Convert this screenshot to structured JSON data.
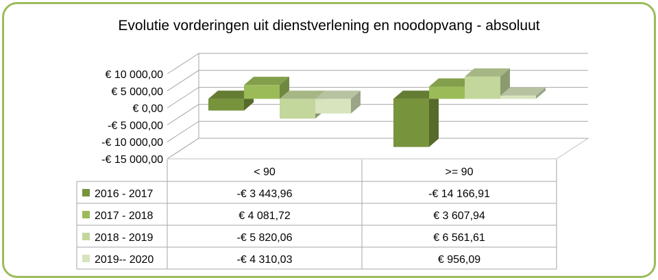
{
  "chart_data": {
    "type": "bar",
    "title": "Evolutie vorderingen uit dienstverlening en noodopvang - absoluut",
    "categories": [
      "< 90",
      ">= 90"
    ],
    "series": [
      {
        "name": "2016 - 2017",
        "values": [
          -3443.96,
          -14166.91
        ],
        "labels": [
          "-€ 3 443,96",
          "-€ 14 166,91"
        ],
        "color": "#77933c"
      },
      {
        "name": "2017 - 2018",
        "values": [
          4081.72,
          3607.94
        ],
        "labels": [
          "€ 4 081,72",
          "€ 3 607,94"
        ],
        "color": "#9bbb59"
      },
      {
        "name": "2018 - 2019",
        "values": [
          -5820.06,
          6561.61
        ],
        "labels": [
          "-€ 5 820,06",
          "€ 6 561,61"
        ],
        "color": "#c3d69b"
      },
      {
        "name": "2019-- 2020",
        "values": [
          -4310.03,
          956.09
        ],
        "labels": [
          "-€ 4 310,03",
          "€  956,09"
        ],
        "color": "#d7e4bd"
      }
    ],
    "ylim": [
      -15000,
      10000
    ],
    "yticks": [
      10000,
      5000,
      0,
      -5000,
      -10000,
      -15000
    ],
    "ytick_labels": [
      "€ 10 000,00",
      "€ 5 000,00",
      "€  0,00",
      "-€ 5 000,00",
      "-€ 10 000,00",
      "-€ 15 000,00"
    ],
    "grid": true,
    "legend": "data-table"
  }
}
